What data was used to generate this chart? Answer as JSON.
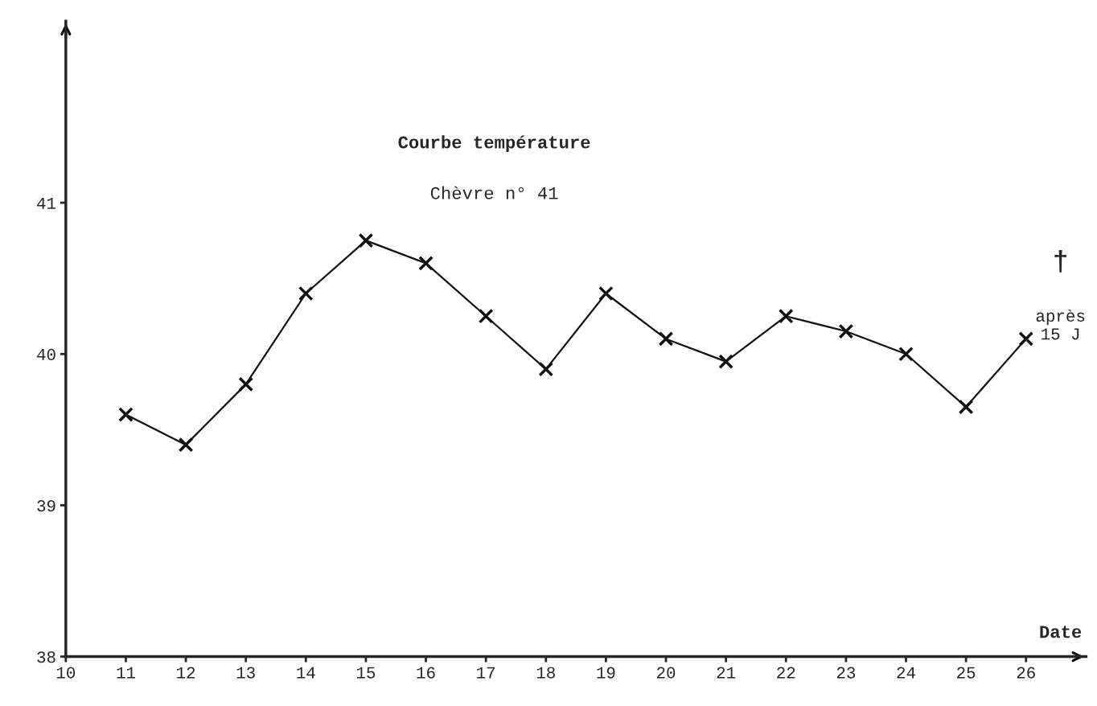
{
  "chart_data": {
    "type": "line",
    "title": "Courbe température",
    "subtitle": "Chèvre n° 41",
    "xlabel": "Date",
    "x": [
      11,
      12,
      13,
      14,
      15,
      16,
      17,
      18,
      19,
      20,
      21,
      22,
      23,
      24,
      25,
      26
    ],
    "series": [
      {
        "color": "#111111",
        "values": [
          39.6,
          39.4,
          39.8,
          40.4,
          40.75,
          40.6,
          40.25,
          39.9,
          40.4,
          40.1,
          39.95,
          40.25,
          40.15,
          40.0,
          39.65,
          40.1
        ]
      }
    ],
    "xlim": [
      10,
      27
    ],
    "xticks": [
      10,
      11,
      12,
      13,
      14,
      15,
      16,
      17,
      18,
      19,
      20,
      21,
      22,
      23,
      24,
      25,
      26
    ],
    "ylim": [
      38,
      42.2
    ],
    "yticks": [
      38,
      39,
      40,
      41
    ],
    "annotations": [
      "†",
      "après\n15 J"
    ],
    "marker": "cross",
    "line_style": "solid",
    "grid": false,
    "legend": false
  }
}
